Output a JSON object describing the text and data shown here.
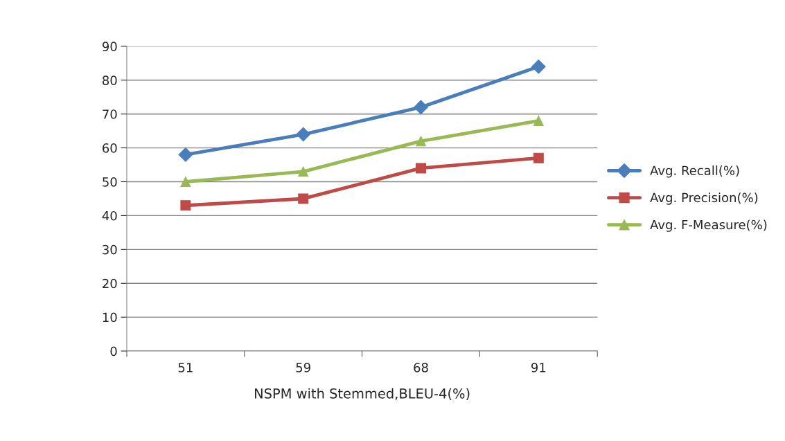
{
  "chart_data": {
    "type": "line",
    "xlabel": "NSPM with Stemmed,BLEU-4(%)",
    "categories": [
      "51",
      "59",
      "68",
      "91"
    ],
    "series": [
      {
        "name": "Avg. Recall(%)",
        "color": "#4a7ebb",
        "marker": "diamond",
        "values": [
          58,
          64,
          72,
          84
        ]
      },
      {
        "name": "Avg. Precision(%)",
        "color": "#be4b48",
        "marker": "square",
        "values": [
          43,
          45,
          54,
          57
        ]
      },
      {
        "name": "Avg. F-Measure(%)",
        "color": "#98b954",
        "marker": "triangle",
        "values": [
          50,
          53,
          62,
          68
        ]
      }
    ],
    "ylim": [
      0,
      90
    ],
    "yticks": [
      0,
      10,
      20,
      30,
      40,
      50,
      60,
      70,
      80,
      90
    ],
    "grid": "y",
    "legend": "right",
    "line_style": "solid"
  }
}
